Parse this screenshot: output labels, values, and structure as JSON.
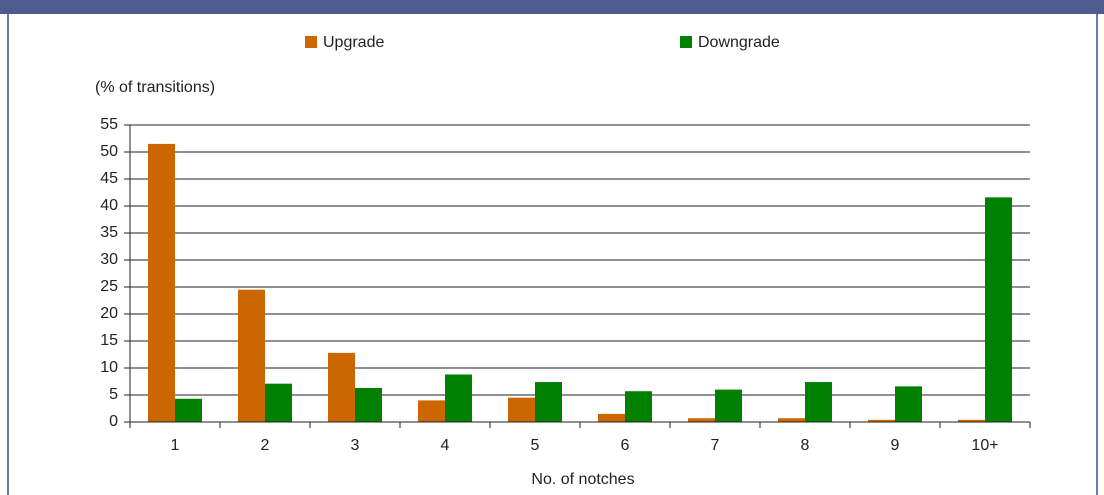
{
  "chart_data": {
    "type": "bar",
    "y_label": "(% of transitions)",
    "x_label": "No. of notches",
    "categories": [
      "1",
      "2",
      "3",
      "4",
      "5",
      "6",
      "7",
      "8",
      "9",
      "10+"
    ],
    "series": [
      {
        "name": "Upgrade",
        "color": "#cc6600",
        "values": [
          51.5,
          24.5,
          12.8,
          4,
          4.5,
          1.5,
          0.7,
          0.7,
          0.4,
          0.4
        ]
      },
      {
        "name": "Downgrade",
        "color": "#008000",
        "values": [
          4.3,
          7.1,
          6.3,
          8.8,
          7.4,
          5.7,
          6,
          7.4,
          6.6,
          41.6
        ]
      }
    ],
    "ylim": [
      0,
      55
    ],
    "yticks": [
      0,
      5,
      10,
      15,
      20,
      25,
      30,
      35,
      40,
      45,
      50,
      55
    ],
    "grid": true,
    "legend": "top"
  }
}
